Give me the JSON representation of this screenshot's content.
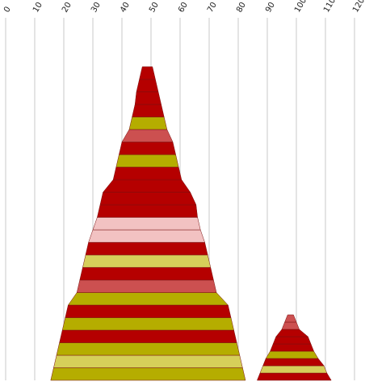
{
  "chart_data": {
    "type": "area",
    "title": "",
    "xlabel": "",
    "ylabel": "",
    "xlim": [
      0,
      120
    ],
    "x_ticks": [
      "0",
      "10",
      "20",
      "30",
      "40",
      "50",
      "60",
      "70",
      "80",
      "90",
      "100",
      "110",
      "120"
    ],
    "grid": true,
    "legend": "none",
    "series": [
      {
        "bands": [
          {
            "left": 15.5,
            "right": 82.5,
            "color": "#b5ad00"
          },
          {
            "left": 16.5,
            "right": 81.5,
            "color": "#d6cf5a"
          },
          {
            "left": 17.5,
            "right": 80.5,
            "color": "#b5ad00"
          },
          {
            "left": 18.5,
            "right": 79.5,
            "color": "#b50000"
          },
          {
            "left": 19.5,
            "right": 78.5,
            "color": "#b5ad00"
          },
          {
            "left": 20.5,
            "right": 77.5,
            "color": "#b50000"
          },
          {
            "left": 21.5,
            "right": 76.5,
            "color": "#b5ad00"
          },
          {
            "left": 24.5,
            "right": 72.5,
            "color": "#cc5050"
          },
          {
            "left": 25.5,
            "right": 71.5,
            "color": "#b50000"
          },
          {
            "left": 26.5,
            "right": 70.5,
            "color": "#d6cf5a"
          },
          {
            "left": 27.5,
            "right": 69.5,
            "color": "#b50000"
          },
          {
            "left": 28.5,
            "right": 68.5,
            "color": "#f2c2c2"
          },
          {
            "left": 30,
            "right": 67,
            "color": "#f2c2c2"
          },
          {
            "left": 31.5,
            "right": 66,
            "color": "#b50000"
          },
          {
            "left": 32.5,
            "right": 65.5,
            "color": "#b50000"
          },
          {
            "left": 33.5,
            "right": 63.5,
            "color": "#b50000"
          },
          {
            "left": 37,
            "right": 60.5,
            "color": "#b50000"
          },
          {
            "left": 38,
            "right": 59.5,
            "color": "#b5ad00"
          },
          {
            "left": 39,
            "right": 58.5,
            "color": "#b50000"
          },
          {
            "left": 40,
            "right": 57.5,
            "color": "#cc5050"
          },
          {
            "left": 42.5,
            "right": 55.5,
            "color": "#b5ad00"
          },
          {
            "left": 43.5,
            "right": 54.5,
            "color": "#b50000"
          },
          {
            "left": 44.5,
            "right": 53.5,
            "color": "#b50000"
          },
          {
            "left": 45,
            "right": 52.5,
            "color": "#b50000"
          },
          {
            "left": 46,
            "right": 51.5,
            "color": "#b50000"
          }
        ]
      },
      {
        "bands": [
          {
            "left": 86.5,
            "right": 112,
            "color": "#b50000"
          },
          {
            "left": 87.5,
            "right": 110.5,
            "color": "#d6cf5a"
          },
          {
            "left": 88.5,
            "right": 109.5,
            "color": "#b50000"
          },
          {
            "left": 89.5,
            "right": 107.5,
            "color": "#b5ad00"
          },
          {
            "left": 91,
            "right": 106,
            "color": "#b50000"
          },
          {
            "left": 92,
            "right": 105,
            "color": "#b50000"
          },
          {
            "left": 93,
            "right": 104,
            "color": "#b50000"
          },
          {
            "left": 95,
            "right": 101,
            "color": "#cc5050"
          },
          {
            "left": 96,
            "right": 100,
            "color": "#cc5050"
          }
        ]
      }
    ]
  }
}
